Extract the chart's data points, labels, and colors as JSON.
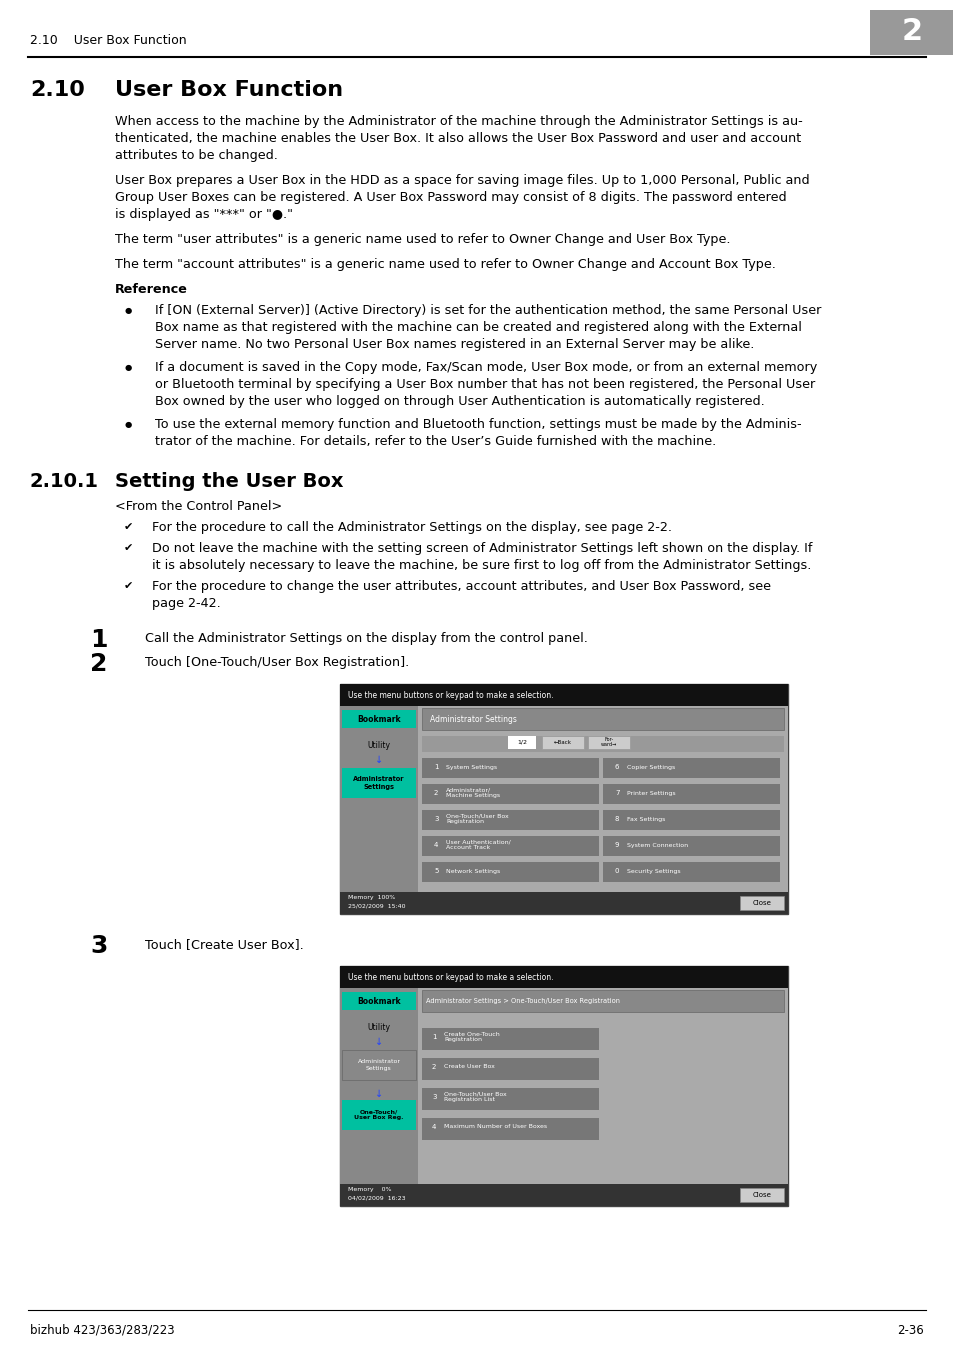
{
  "page_bg": "#ffffff",
  "header_text_left": "2.10    User Box Function",
  "header_number": "2",
  "footer_left": "bizhub 423/363/283/223",
  "footer_right": "2-36",
  "para1_lines": [
    "When access to the machine by the Administrator of the machine through the Administrator Settings is au-",
    "thenticated, the machine enables the User Box. It also allows the User Box Password and user and account",
    "attributes to be changed."
  ],
  "para2_lines": [
    "User Box prepares a User Box in the HDD as a space for saving image files. Up to 1,000 Personal, Public and",
    "Group User Boxes can be registered. A User Box Password may consist of 8 digits. The password entered",
    "is displayed as \"***\" or \"●.\""
  ],
  "para3": "The term \"user attributes\" is a generic name used to refer to Owner Change and User Box Type.",
  "para4": "The term \"account attributes\" is a generic name used to refer to Owner Change and Account Box Type.",
  "reference_label": "Reference",
  "bullet1_lines": [
    "If [ON (External Server)] (Active Directory) is set for the authentication method, the same Personal User",
    "Box name as that registered with the machine can be created and registered along with the External",
    "Server name. No two Personal User Box names registered in an External Server may be alike."
  ],
  "bullet2_lines": [
    "If a document is saved in the Copy mode, Fax/Scan mode, User Box mode, or from an external memory",
    "or Bluetooth terminal by specifying a User Box number that has not been registered, the Personal User",
    "Box owned by the user who logged on through User Authentication is automatically registered."
  ],
  "bullet3_lines": [
    "To use the external memory function and Bluetooth function, settings must be made by the Adminis-",
    "trator of the machine. For details, refer to the User’s Guide furnished with the machine."
  ],
  "subsec_num": "2.10.1",
  "subsec_title": "Setting the User Box",
  "control_panel": "<From the Control Panel>",
  "check1": "For the procedure to call the Administrator Settings on the display, see page 2-2.",
  "check2_lines": [
    "Do not leave the machine with the setting screen of Administrator Settings left shown on the display. If",
    "it is absolutely necessary to leave the machine, be sure first to log off from the Administrator Settings."
  ],
  "check3_lines": [
    "For the procedure to change the user attributes, account attributes, and User Box Password, see",
    "page 2-42."
  ],
  "step1_text": "Call the Administrator Settings on the display from the control panel.",
  "step2_text": "Touch [One-Touch/User Box Registration].",
  "step3_text": "Touch [Create User Box].",
  "screen1_top_msg": "Use the menu buttons or keypad to make a selection.",
  "screen1_title": "Administrator Settings",
  "screen1_menu_left": [
    "System Settings",
    "Administrator/\nMachine Settings",
    "One-Touch/User Box\nRegistration",
    "User Authentication/\nAccount Track",
    "Network Settings"
  ],
  "screen1_menu_right": [
    "Copier Settings",
    "Printer Settings",
    "Fax Settings",
    "System Connection",
    "Security Settings"
  ],
  "screen1_nums_left": [
    "1",
    "2",
    "3",
    "4",
    "5"
  ],
  "screen1_nums_right": [
    "6",
    "7",
    "8",
    "9",
    "0"
  ],
  "screen1_page": "1/2",
  "screen1_date": "25/02/2009  15:40",
  "screen1_memory": "Memory    100%",
  "screen2_top_msg": "Use the menu buttons or keypad to make a selection.",
  "screen2_title": "Administrator Settings > One-Touch/User Box Registration",
  "screen2_menu": [
    "Create One-Touch\nRegistration",
    "Create User Box",
    "One-Touch/User Box\nRegistration List",
    "Maximum Number of User Boxes"
  ],
  "screen2_nums": [
    "1",
    "2",
    "3",
    "4"
  ],
  "screen2_date": "04/02/2009  16:23",
  "screen2_memory": "Memory    0%",
  "teal_color": "#00b0a0",
  "dark_teal": "#009688",
  "screen_outer_bg": "#333333",
  "screen_panel_bg": "#bbbbbb",
  "screen_content_bg": "#aaaaaa",
  "screen_btn_bg": "#888888",
  "screen_btn_dark": "#666666",
  "screen_white_btn": "#dddddd",
  "bookmark_green": "#00c0a0"
}
